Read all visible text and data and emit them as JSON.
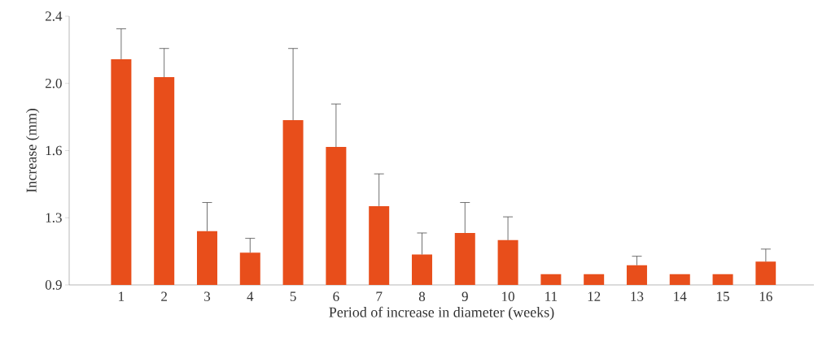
{
  "chart_data": {
    "type": "bar",
    "xlabel": "Period of increase in diameter (weeks)",
    "ylabel": "Increase (mm)",
    "categories": [
      "1",
      "2",
      "3",
      "4",
      "5",
      "6",
      "7",
      "8",
      "9",
      "10",
      "11",
      "12",
      "13",
      "14",
      "15",
      "16"
    ],
    "values": [
      2.16,
      2.06,
      1.2,
      1.08,
      1.82,
      1.67,
      1.34,
      1.07,
      1.19,
      1.15,
      0.96,
      0.96,
      1.01,
      0.96,
      0.96,
      1.03
    ],
    "errors": [
      [
        2.16,
        2.33
      ],
      [
        2.06,
        2.22
      ],
      [
        1.2,
        1.36
      ],
      [
        1.08,
        1.16
      ],
      [
        1.82,
        2.22
      ],
      [
        1.67,
        1.91
      ],
      [
        1.34,
        1.52
      ],
      [
        1.07,
        1.19
      ],
      [
        1.19,
        1.36
      ],
      [
        1.15,
        1.28
      ],
      null,
      null,
      [
        1.01,
        1.06
      ],
      null,
      null,
      [
        1.03,
        1.1
      ]
    ],
    "color": "#e84e1b",
    "ylim": [
      0.9,
      2.4
    ],
    "yticks": [
      {
        "value": 0.9,
        "label": "0.9"
      },
      {
        "value": 1.275,
        "label": "1.3"
      },
      {
        "value": 1.65,
        "label": "1.6"
      },
      {
        "value": 2.025,
        "label": "2.0"
      },
      {
        "value": 2.4,
        "label": "2.4"
      }
    ],
    "grid": false
  }
}
